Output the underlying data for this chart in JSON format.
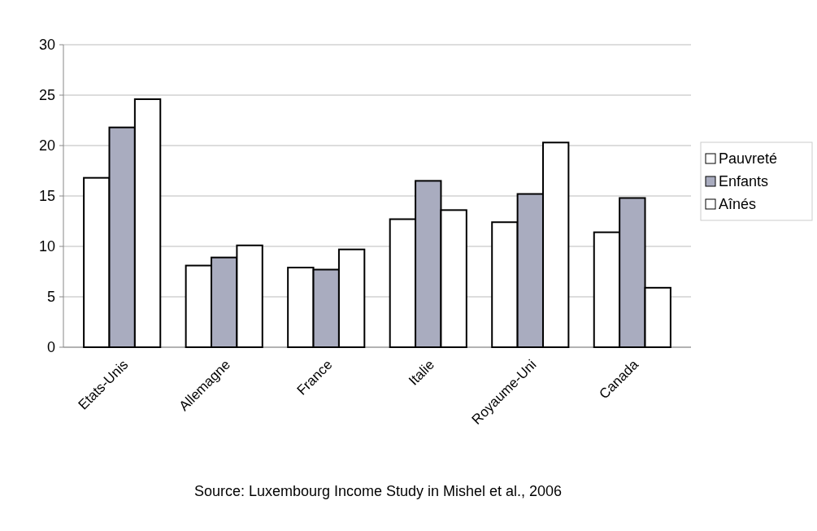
{
  "chart_data": {
    "type": "bar",
    "categories": [
      "Etats-Unis",
      "Allemagne",
      "France",
      "Italie",
      "Royaume-Uni",
      "Canada"
    ],
    "series": [
      {
        "name": "Pauvreté",
        "color": "#ffffff",
        "values": [
          16.8,
          8.1,
          7.9,
          12.7,
          12.4,
          11.4
        ]
      },
      {
        "name": "Enfants",
        "color": "#a9acbf",
        "values": [
          21.8,
          8.9,
          7.7,
          16.5,
          15.2,
          14.8
        ]
      },
      {
        "name": "Aînés",
        "color": "#ffffff",
        "values": [
          24.6,
          10.1,
          9.7,
          13.6,
          20.3,
          5.9
        ]
      }
    ],
    "ylim": [
      0,
      30
    ],
    "yticks": [
      0,
      5,
      10,
      15,
      20,
      25,
      30
    ],
    "grid": "y",
    "legend": "right",
    "annotations": [
      "Source: Luxembourg Income Study in Mishel et al., 2006"
    ]
  }
}
